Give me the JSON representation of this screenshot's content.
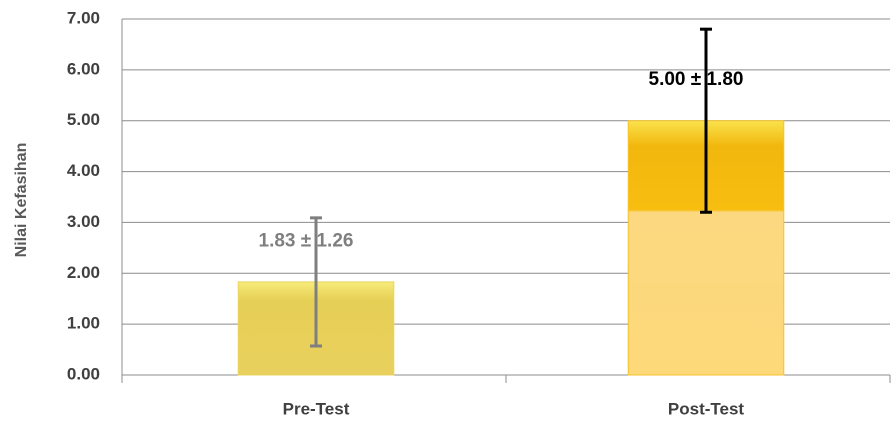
{
  "chart_data": {
    "type": "bar",
    "y_axis_label": "Nilai Kefasihan",
    "categories": [
      "Pre-Test",
      "Post-Test"
    ],
    "values": [
      1.83,
      5.0
    ],
    "errors": [
      1.26,
      1.8
    ],
    "value_labels": [
      "1.83 ± 1.26",
      "5.00 ± 1.80"
    ],
    "colors": [
      "#e8d35c",
      "#f7c12e"
    ],
    "label_colors": [
      "#7f7f7f",
      "#000000"
    ],
    "ylim": [
      0,
      7
    ],
    "yticks": [
      {
        "value": 0,
        "label": "0.00"
      },
      {
        "value": 1,
        "label": "1.00"
      },
      {
        "value": 2,
        "label": "2.00"
      },
      {
        "value": 3,
        "label": "3.00"
      },
      {
        "value": 4,
        "label": "4.00"
      },
      {
        "value": 5,
        "label": "5.00"
      },
      {
        "value": 6,
        "label": "6.00"
      },
      {
        "value": 7,
        "label": "7.00"
      }
    ],
    "grid": true
  }
}
